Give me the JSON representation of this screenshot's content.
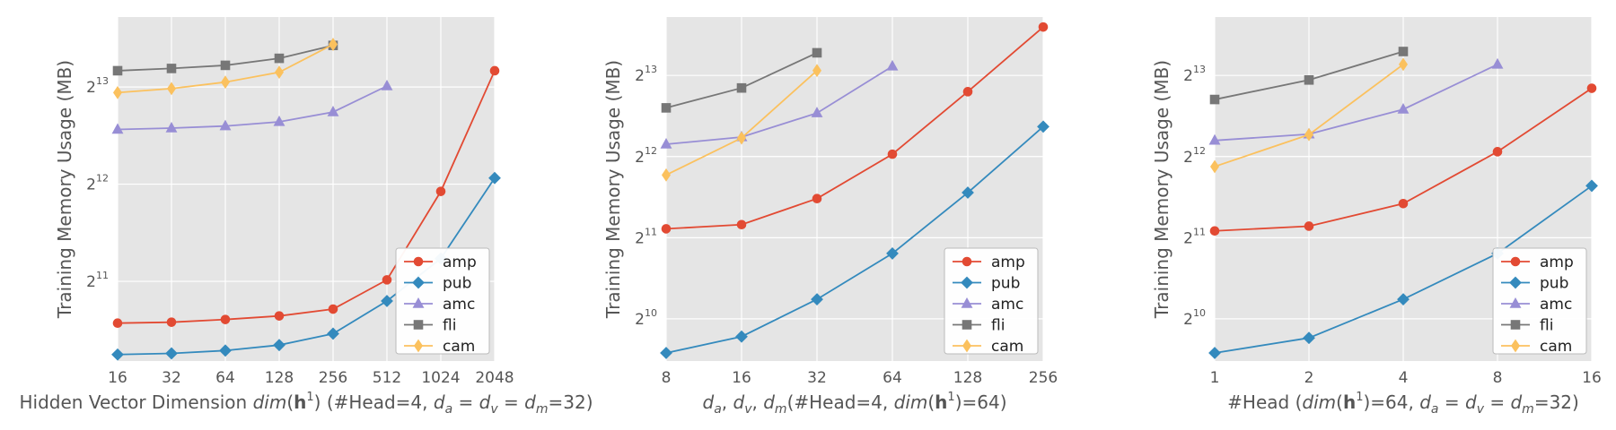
{
  "chart_data": [
    {
      "type": "line",
      "title": "",
      "ylabel": "Training Memory Usage (MB)",
      "xlabel_parts": [
        {
          "t": "Hidden Vector Dimension "
        },
        {
          "t": "dim",
          "i": true
        },
        {
          "t": "("
        },
        {
          "t": "h",
          "b": true
        },
        {
          "t": "1",
          "sup": true
        },
        {
          "t": ") (#Head=4, "
        },
        {
          "t": "d",
          "i": true
        },
        {
          "t": "a",
          "i": true,
          "sub": true
        },
        {
          "t": " = "
        },
        {
          "t": "d",
          "i": true
        },
        {
          "t": "v",
          "i": true,
          "sub": true
        },
        {
          "t": " = "
        },
        {
          "t": "d",
          "i": true
        },
        {
          "t": "m",
          "i": true,
          "sub": true
        },
        {
          "t": "=32)"
        }
      ],
      "x": [
        16,
        32,
        64,
        128,
        256,
        512,
        1024,
        2048
      ],
      "x_tick_labels": [
        "16",
        "32",
        "64",
        "128",
        "256",
        "512",
        "1024",
        "2048"
      ],
      "y_ticks": [
        {
          "base": "2",
          "exp": "11"
        },
        {
          "base": "2",
          "exp": "12"
        },
        {
          "base": "2",
          "exp": "13"
        }
      ],
      "ylim_log2": [
        10.18,
        13.72
      ],
      "series": [
        {
          "name": "amp",
          "marker": "circle",
          "color": "#E24A33",
          "values": [
            1520,
            1530,
            1560,
            1600,
            1680,
            2070,
            3890,
            9200
          ]
        },
        {
          "name": "pub",
          "marker": "diamond",
          "color": "#348ABD",
          "values": [
            1215,
            1225,
            1250,
            1300,
            1410,
            1780,
            2410,
            4280
          ]
        },
        {
          "name": "amc",
          "marker": "triangle",
          "color": "#988ED5",
          "values": [
            6050,
            6110,
            6200,
            6390,
            6850,
            8250,
            null,
            null
          ]
        },
        {
          "name": "fli",
          "marker": "square",
          "color": "#777777",
          "values": [
            9200,
            9350,
            9560,
            10050,
            11020,
            null,
            null,
            null
          ]
        },
        {
          "name": "cam",
          "marker": "thin_diamond",
          "color": "#FBC15E",
          "values": [
            7870,
            8100,
            8480,
            9100,
            11100,
            null,
            null,
            null
          ]
        }
      ],
      "legend": "lower-right",
      "grid": true
    },
    {
      "type": "line",
      "title": "",
      "ylabel": "Training Memory Usage (MB)",
      "xlabel_parts": [
        {
          "t": "d",
          "i": true
        },
        {
          "t": "a",
          "i": true,
          "sub": true
        },
        {
          "t": ", "
        },
        {
          "t": "d",
          "i": true
        },
        {
          "t": "v",
          "i": true,
          "sub": true
        },
        {
          "t": ", "
        },
        {
          "t": "d",
          "i": true
        },
        {
          "t": "m",
          "i": true,
          "sub": true
        },
        {
          "t": "(#Head=4, "
        },
        {
          "t": "dim",
          "i": true
        },
        {
          "t": "("
        },
        {
          "t": "h",
          "b": true
        },
        {
          "t": "1",
          "sup": true
        },
        {
          "t": ")=64)"
        }
      ],
      "x": [
        8,
        16,
        32,
        64,
        128,
        256
      ],
      "x_tick_labels": [
        "8",
        "16",
        "32",
        "64",
        "128",
        "256"
      ],
      "y_ticks": [
        {
          "base": "2",
          "exp": "10"
        },
        {
          "base": "2",
          "exp": "11"
        },
        {
          "base": "2",
          "exp": "12"
        },
        {
          "base": "2",
          "exp": "13"
        }
      ],
      "ylim_log2": [
        9.48,
        13.72
      ],
      "series": [
        {
          "name": "amp",
          "marker": "circle",
          "color": "#E24A33",
          "values": [
            2210,
            2290,
            2860,
            4180,
            7130,
            12390
          ]
        },
        {
          "name": "pub",
          "marker": "diamond",
          "color": "#348ABD",
          "values": [
            765,
            880,
            1210,
            1790,
            3010,
            5290
          ]
        },
        {
          "name": "amc",
          "marker": "triangle",
          "color": "#988ED5",
          "values": [
            4550,
            4840,
            5940,
            8860,
            null,
            null
          ]
        },
        {
          "name": "fli",
          "marker": "square",
          "color": "#777777",
          "values": [
            6210,
            7360,
            9940,
            null,
            null,
            null
          ]
        },
        {
          "name": "cam",
          "marker": "thin_diamond",
          "color": "#FBC15E",
          "values": [
            3500,
            4800,
            8540,
            null,
            null,
            null
          ]
        }
      ],
      "legend": "lower-right",
      "grid": true
    },
    {
      "type": "line",
      "title": "",
      "ylabel": "Training Memory Usage (MB)",
      "xlabel_parts": [
        {
          "t": "#Head ("
        },
        {
          "t": "dim",
          "i": true
        },
        {
          "t": "("
        },
        {
          "t": "h",
          "b": true
        },
        {
          "t": "1",
          "sup": true
        },
        {
          "t": ")=64, "
        },
        {
          "t": "d",
          "i": true
        },
        {
          "t": "a",
          "i": true,
          "sub": true
        },
        {
          "t": " = "
        },
        {
          "t": "d",
          "i": true
        },
        {
          "t": "v",
          "i": true,
          "sub": true
        },
        {
          "t": " = "
        },
        {
          "t": "d",
          "i": true
        },
        {
          "t": "m",
          "i": true,
          "sub": true
        },
        {
          "t": "=32)"
        }
      ],
      "x": [
        1,
        2,
        4,
        8,
        16
      ],
      "x_tick_labels": [
        "1",
        "2",
        "4",
        "8",
        "16"
      ],
      "y_ticks": [
        {
          "base": "2",
          "exp": "10"
        },
        {
          "base": "2",
          "exp": "11"
        },
        {
          "base": "2",
          "exp": "12"
        },
        {
          "base": "2",
          "exp": "13"
        }
      ],
      "ylim_log2": [
        9.48,
        13.72
      ],
      "series": [
        {
          "name": "amp",
          "marker": "circle",
          "color": "#E24A33",
          "values": [
            2170,
            2260,
            2740,
            4270,
            7340
          ]
        },
        {
          "name": "pub",
          "marker": "diamond",
          "color": "#348ABD",
          "values": [
            765,
            870,
            1210,
            1790,
            3190
          ]
        },
        {
          "name": "amc",
          "marker": "triangle",
          "color": "#988ED5",
          "values": [
            4700,
            4960,
            6130,
            9000,
            null
          ]
        },
        {
          "name": "fli",
          "marker": "square",
          "color": "#777777",
          "values": [
            6670,
            7880,
            10050,
            null,
            null
          ]
        },
        {
          "name": "cam",
          "marker": "thin_diamond",
          "color": "#FBC15E",
          "values": [
            3760,
            4940,
            9000,
            null,
            null
          ]
        }
      ],
      "legend": "lower-right",
      "grid": true
    }
  ]
}
